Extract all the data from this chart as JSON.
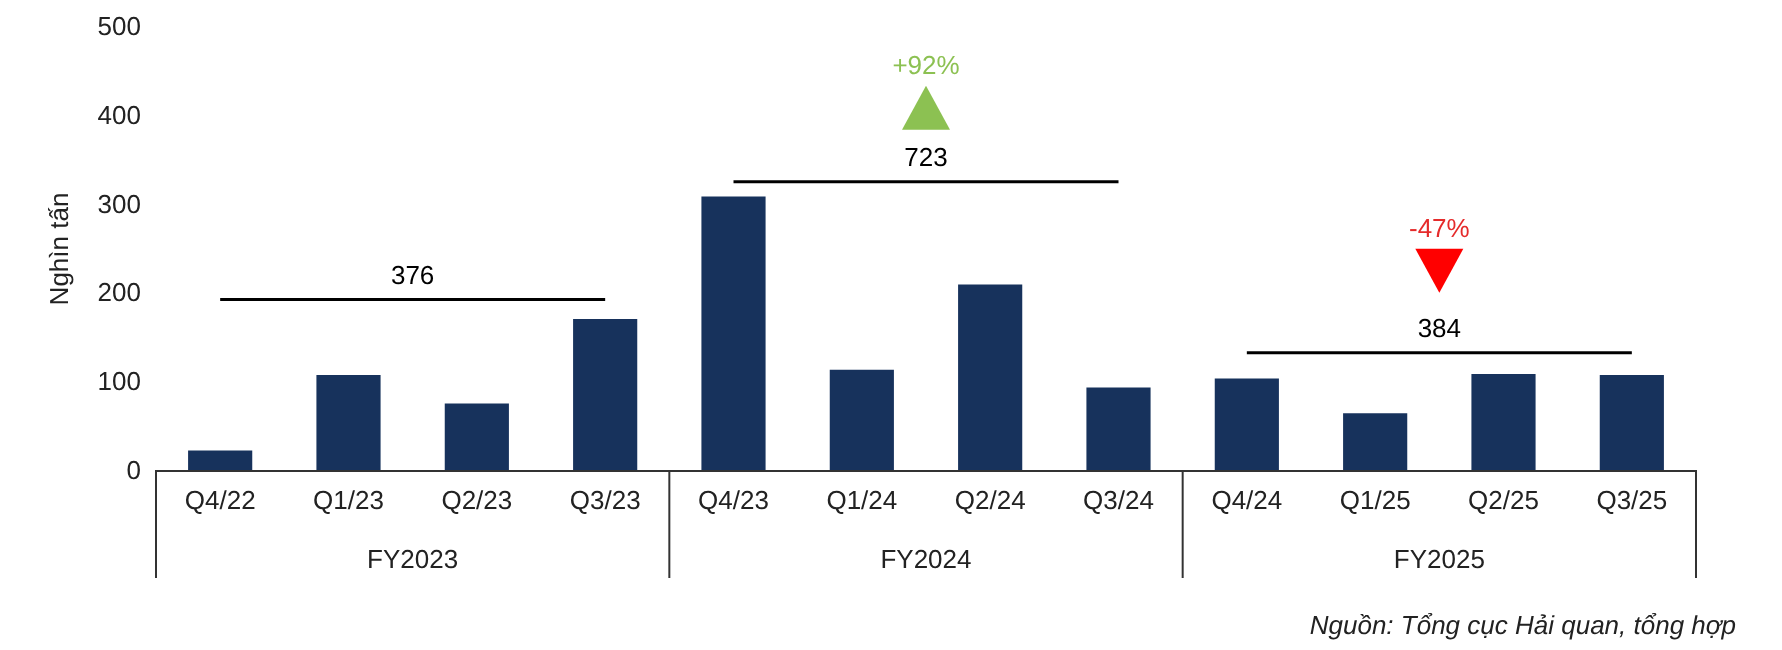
{
  "chart_data": {
    "type": "bar",
    "ylabel": "Nghìn tấn",
    "categories": [
      "Q4/22",
      "Q1/23",
      "Q2/23",
      "Q3/23",
      "Q4/23",
      "Q1/24",
      "Q2/24",
      "Q3/24",
      "Q4/24",
      "Q1/25",
      "Q2/25",
      "Q3/25"
    ],
    "values": [
      22,
      107,
      75,
      170,
      308,
      113,
      209,
      93,
      103,
      64,
      108,
      107
    ],
    "color": "#17325c",
    "ylim": [
      0,
      500
    ],
    "yticks": [
      0,
      100,
      200,
      300,
      400,
      500
    ],
    "grid": false,
    "annotations": [
      "376",
      "723",
      "+92%",
      "384",
      "-47%",
      "FY2023",
      "FY2024",
      "FY2025",
      "Nguồn: Tổng cục Hải quan, tổng hợp"
    ]
  }
}
